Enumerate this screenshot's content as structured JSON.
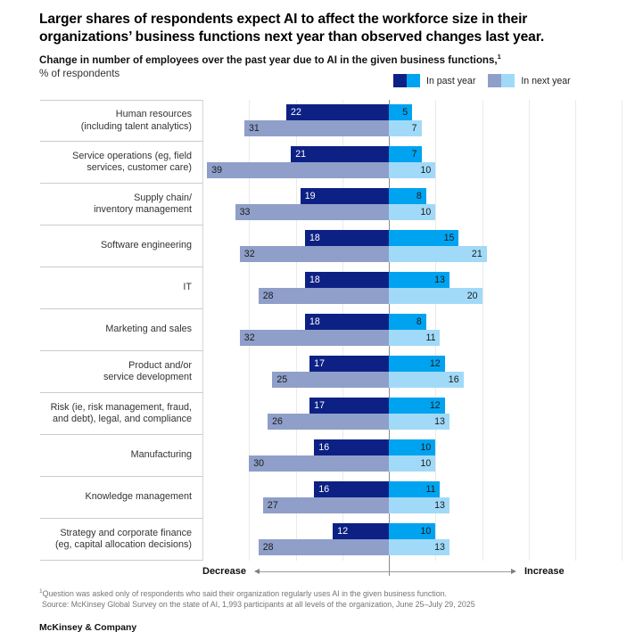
{
  "title_lines": [
    "Larger shares of respondents expect AI to affect the workforce size in their",
    "organizations’ business functions next year than observed changes last year."
  ],
  "subtitle": {
    "text": "Change in number of employees over the past year due to AI in the given business functions,",
    "superscript": "1",
    "unit_line": "% of respondents"
  },
  "legend": [
    {
      "label": "In past year",
      "colors": [
        "#0d2184",
        "#00a3f0"
      ]
    },
    {
      "label": "In next year",
      "colors": [
        "#8f9fc9",
        "#a1daf8"
      ]
    }
  ],
  "axis": {
    "decrease_label": "Decrease",
    "increase_label": "Increase"
  },
  "colors": {
    "past_decrease": "#0d2184",
    "past_increase": "#00a3f0",
    "next_decrease": "#8f9fc9",
    "next_increase": "#a1daf8",
    "value_dark": "#1a1a1a",
    "value_on_navy": "#ffffff"
  },
  "chart_data": {
    "type": "bar",
    "orientation": "diverging-horizontal",
    "title": "Change in number of employees over the past year due to AI in the given business functions, % of respondents",
    "xlabel_left": "Decrease",
    "xlabel_right": "Increase",
    "xlim": [
      -40,
      50
    ],
    "gridline_step": 10,
    "categories": [
      [
        "Human resources",
        "(including talent analytics)"
      ],
      [
        "Service operations (eg, field",
        "services, customer care)"
      ],
      [
        "Supply chain/",
        "inventory management"
      ],
      [
        "Software engineering"
      ],
      [
        "IT"
      ],
      [
        "Marketing and sales"
      ],
      [
        "Product and/or",
        "service development"
      ],
      [
        "Risk (ie, risk management, fraud,",
        "and debt), legal, and compliance"
      ],
      [
        "Manufacturing"
      ],
      [
        "Knowledge management"
      ],
      [
        "Strategy and corporate finance",
        "(eg, capital allocation decisions)"
      ]
    ],
    "series": [
      {
        "name": "In past year",
        "decrease": [
          22,
          21,
          19,
          18,
          18,
          18,
          17,
          17,
          16,
          16,
          12
        ],
        "increase": [
          5,
          7,
          8,
          15,
          13,
          8,
          12,
          12,
          10,
          11,
          10
        ]
      },
      {
        "name": "In next year",
        "decrease": [
          31,
          39,
          33,
          32,
          28,
          32,
          25,
          26,
          30,
          27,
          28
        ],
        "increase": [
          7,
          10,
          10,
          21,
          20,
          11,
          16,
          13,
          10,
          13,
          13
        ]
      }
    ]
  },
  "footnotes": {
    "superscript": "1",
    "note": "Question was asked only of respondents who said their organization regularly uses AI in the given business function.",
    "source": "Source: McKinsey Global Survey on the state of AI, 1,993 participants at all levels of the organization, June 25–July 29, 2025"
  },
  "brand": "McKinsey & Company"
}
